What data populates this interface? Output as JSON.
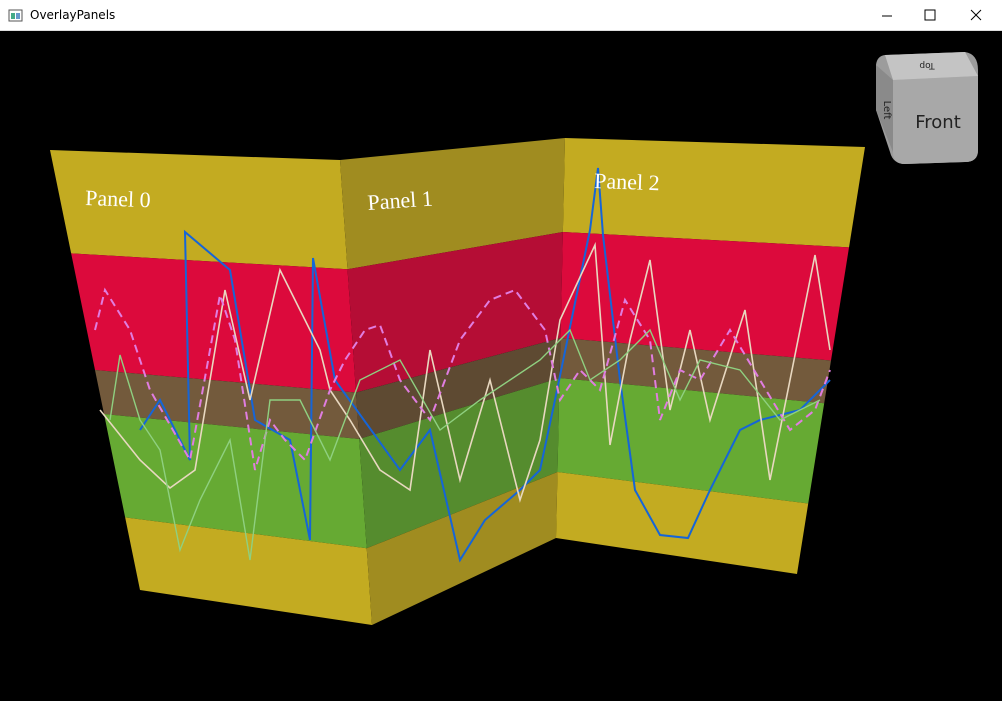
{
  "window": {
    "title": "OverlayPanels"
  },
  "panels": [
    {
      "label": "Panel 0"
    },
    {
      "label": "Panel 1"
    },
    {
      "label": "Panel 2"
    }
  ],
  "view_cube": {
    "top": "Top",
    "left": "Left",
    "front": "Front"
  }
}
